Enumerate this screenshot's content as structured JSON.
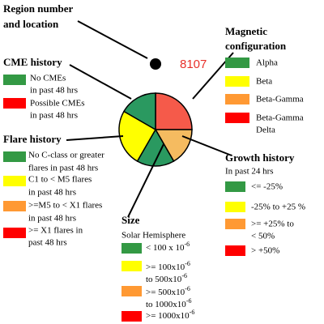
{
  "region": {
    "title": [
      "Region number",
      "and location"
    ],
    "number": "8107"
  },
  "magnetic": {
    "title": [
      "Magnetic",
      "configuration"
    ],
    "items": [
      {
        "color": "#339944",
        "lines": [
          "Alpha"
        ]
      },
      {
        "color": "#ffff00",
        "lines": [
          "Beta"
        ]
      },
      {
        "color": "#ff9933",
        "lines": [
          "Beta-Gamma"
        ]
      },
      {
        "color": "#ff0000",
        "lines": [
          "Beta-Gamma",
          "Delta"
        ]
      }
    ]
  },
  "cme": {
    "title": "CME history",
    "items": [
      {
        "color": "#339944",
        "lines": [
          "No CMEs",
          "in past 48 hrs"
        ]
      },
      {
        "color": "#ff0000",
        "lines": [
          "Possible CMEs",
          "in past 48 hrs"
        ]
      }
    ]
  },
  "flare": {
    "title": "Flare history",
    "items": [
      {
        "color": "#339944",
        "lines": [
          "No C-class or greater",
          "flares in past 48 hrs"
        ]
      },
      {
        "color": "#ffff00",
        "lines": [
          "C1 to < M5 flares",
          "in past 48 hrs"
        ]
      },
      {
        "color": "#ff9933",
        "lines": [
          ">=M5 to < X1 flares",
          "in past 48 hrs"
        ]
      },
      {
        "color": "#ff0000",
        "lines": [
          ">= X1 flares in",
          "past 48 hrs"
        ]
      }
    ]
  },
  "size": {
    "title": "Size",
    "subtitle": "Solar Hemisphere",
    "items": [
      {
        "color": "#339944",
        "lines": [
          {
            "text": "< 100 x 10",
            "sup": "-6"
          }
        ]
      },
      {
        "color": "#ffff00",
        "lines": [
          {
            "text": ">= 100x10",
            "sup": "-6"
          },
          {
            "text": "to 500x10",
            "sup": "-6"
          }
        ]
      },
      {
        "color": "#ff9933",
        "lines": [
          {
            "text": ">= 500x10",
            "sup": "-6"
          },
          {
            "text": "to 1000x10",
            "sup": "-6"
          }
        ]
      },
      {
        "color": "#ff0000",
        "lines": [
          {
            "text": ">= 1000x10",
            "sup": "-6"
          }
        ]
      }
    ]
  },
  "growth": {
    "title": "Growth history",
    "subtitle": "In past 24 hrs",
    "items": [
      {
        "color": "#339944",
        "lines": [
          "<= -25%"
        ]
      },
      {
        "color": "#ffff00",
        "lines": [
          "-25% to +25 %"
        ]
      },
      {
        "color": "#ff9933",
        "lines": [
          ">= +25% to",
          "< 50%"
        ]
      },
      {
        "color": "#ff0000",
        "lines": [
          "> +50%"
        ]
      }
    ]
  }
}
